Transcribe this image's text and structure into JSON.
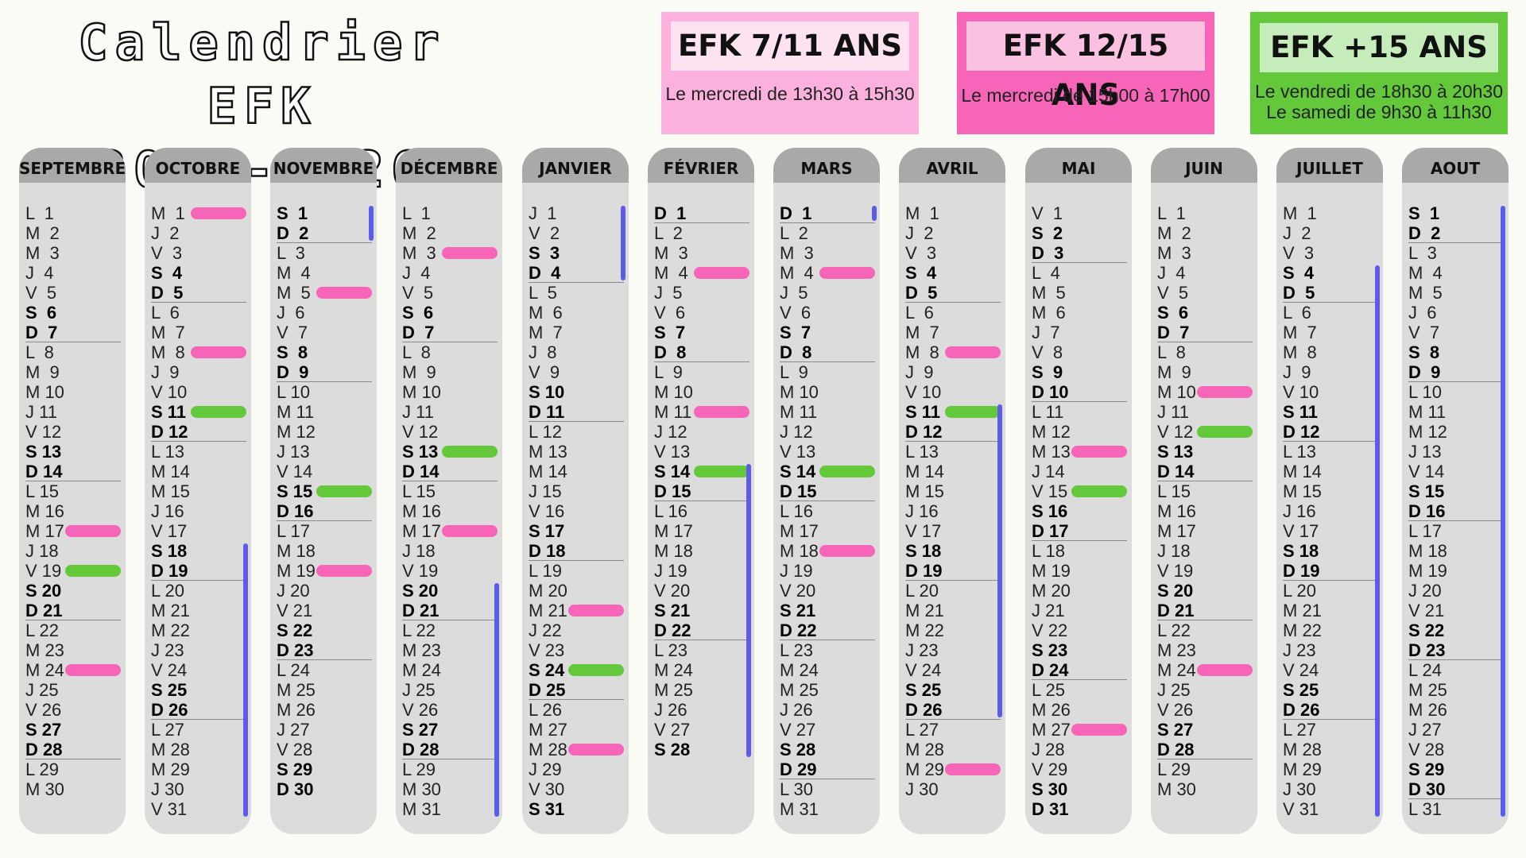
{
  "title": {
    "line1": "Calendrier EFK",
    "line2": "2025-2026"
  },
  "colors": {
    "pink_session": "#f765b8",
    "green_session": "#64c83b",
    "holidays": "#5c5ce8"
  },
  "groups": [
    {
      "name": "EFK 7/11 ANS",
      "lines": [
        "Le mercredi de 13h30 à 15h30"
      ]
    },
    {
      "name": "EFK 12/15 ANS",
      "lines": [
        "Le mercredi de 15h00 à 17h00"
      ]
    },
    {
      "name": "EFK +15 ANS",
      "lines": [
        "Le vendredi de 18h30 à 20h30",
        "Le samedi de 9h30 à 11h30"
      ]
    }
  ],
  "months": [
    {
      "name": "SEPTEMBRE",
      "length": 30,
      "first_weekday": 0,
      "pink": [
        17,
        24
      ],
      "green": [
        19
      ],
      "holidays": []
    },
    {
      "name": "OCTOBRE",
      "length": 31,
      "first_weekday": 2,
      "pink": [
        1,
        8
      ],
      "green": [
        11
      ],
      "holidays": [
        [
          18,
          31
        ]
      ]
    },
    {
      "name": "NOVEMBRE",
      "length": 30,
      "first_weekday": 5,
      "pink": [
        5,
        19
      ],
      "green": [
        15
      ],
      "holidays": [
        [
          1,
          2
        ]
      ]
    },
    {
      "name": "DÉCEMBRE",
      "length": 31,
      "first_weekday": 0,
      "pink": [
        3,
        17
      ],
      "green": [
        13
      ],
      "holidays": [
        [
          20,
          31
        ]
      ]
    },
    {
      "name": "JANVIER",
      "length": 31,
      "first_weekday": 3,
      "pink": [
        21,
        28
      ],
      "green": [
        24
      ],
      "holidays": [
        [
          1,
          4
        ]
      ]
    },
    {
      "name": "FÉVRIER",
      "length": 28,
      "first_weekday": 6,
      "pink": [
        4,
        11
      ],
      "green": [
        14
      ],
      "holidays": [
        [
          14,
          28
        ]
      ]
    },
    {
      "name": "MARS",
      "length": 31,
      "first_weekday": 6,
      "pink": [
        4,
        18
      ],
      "green": [
        14
      ],
      "holidays": [
        [
          1,
          1
        ]
      ]
    },
    {
      "name": "AVRIL",
      "length": 30,
      "first_weekday": 2,
      "pink": [
        8,
        29
      ],
      "green": [
        11
      ],
      "holidays": [
        [
          11,
          26
        ]
      ]
    },
    {
      "name": "MAI",
      "length": 31,
      "first_weekday": 4,
      "pink": [
        13,
        27
      ],
      "green": [
        15
      ],
      "holidays": []
    },
    {
      "name": "JUIN",
      "length": 30,
      "first_weekday": 0,
      "pink": [
        10,
        24
      ],
      "green": [
        12
      ],
      "holidays": []
    },
    {
      "name": "JUILLET",
      "length": 31,
      "first_weekday": 2,
      "pink": [],
      "green": [],
      "holidays": [
        [
          4,
          31
        ]
      ]
    },
    {
      "name": "AOUT",
      "length": 31,
      "first_weekday": 5,
      "pink": [],
      "green": [],
      "holidays": [
        [
          1,
          31
        ]
      ]
    }
  ]
}
